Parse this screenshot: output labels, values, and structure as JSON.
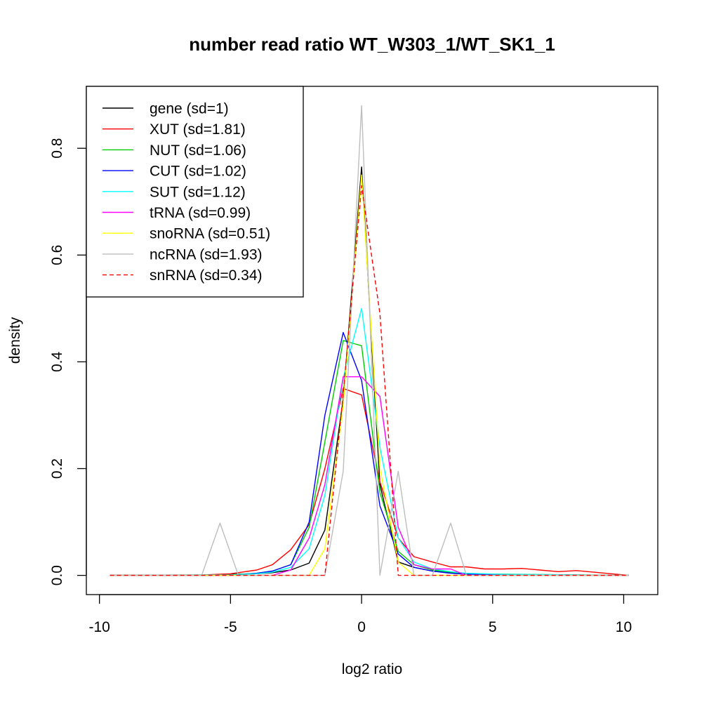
{
  "chart_data": {
    "type": "line",
    "title": "number read ratio WT_W303_1/WT_SK1_1",
    "xlabel": "log2 ratio",
    "ylabel": "density",
    "xlim": [
      -10.5,
      11.3
    ],
    "ylim": [
      -0.036,
      0.916
    ],
    "x_ticks": [
      -10,
      -5,
      0,
      5,
      10
    ],
    "x_tick_labels": [
      "-10",
      "-5",
      "0",
      "5",
      "10"
    ],
    "y_ticks": [
      0.0,
      0.2,
      0.4,
      0.6,
      0.8
    ],
    "y_tick_labels": [
      "0.0",
      "0.2",
      "0.4",
      "0.6",
      "0.8"
    ],
    "grid": false,
    "legend_position": "top-left",
    "series": [
      {
        "name": "gene (sd=1)",
        "color": "#000000",
        "dash": "solid",
        "x": [
          -9.6,
          -6.0,
          -5.0,
          -4.0,
          -3.4,
          -2.7,
          -2.0,
          -1.4,
          -0.7,
          0.0,
          0.7,
          1.4,
          2.0,
          2.7,
          3.4,
          4.0,
          5.0,
          7.0,
          8.4,
          10.2
        ],
        "y": [
          0.0,
          0.0,
          0.002,
          0.003,
          0.005,
          0.01,
          0.023,
          0.085,
          0.33,
          0.765,
          0.17,
          0.025,
          0.015,
          0.008,
          0.005,
          0.003,
          0.002,
          0.001,
          0.0,
          0.0
        ]
      },
      {
        "name": "XUT (sd=1.81)",
        "color": "#ff0000",
        "dash": "solid",
        "x": [
          -9.6,
          -6.0,
          -5.0,
          -4.0,
          -3.4,
          -2.7,
          -2.0,
          -1.4,
          -0.7,
          0.0,
          0.7,
          1.4,
          2.0,
          2.7,
          3.4,
          4.0,
          4.7,
          5.4,
          6.1,
          6.8,
          7.5,
          8.2,
          10.2
        ],
        "y": [
          0.0,
          0.001,
          0.003,
          0.01,
          0.02,
          0.048,
          0.095,
          0.2,
          0.35,
          0.338,
          0.175,
          0.07,
          0.035,
          0.025,
          0.016,
          0.016,
          0.012,
          0.012,
          0.013,
          0.01,
          0.007,
          0.009,
          0.0
        ]
      },
      {
        "name": "NUT (sd=1.06)",
        "color": "#00cd00",
        "dash": "solid",
        "x": [
          -9.6,
          -5.0,
          -4.0,
          -3.4,
          -2.7,
          -2.0,
          -1.4,
          -0.7,
          0.0,
          0.7,
          1.4,
          2.0,
          2.7,
          3.4,
          4.0,
          10.2
        ],
        "y": [
          0.0,
          0.001,
          0.004,
          0.008,
          0.02,
          0.09,
          0.25,
          0.44,
          0.43,
          0.155,
          0.045,
          0.02,
          0.01,
          0.006,
          0.003,
          0.0
        ]
      },
      {
        "name": "CUT (sd=1.02)",
        "color": "#0000ff",
        "dash": "solid",
        "x": [
          -9.6,
          -5.0,
          -4.0,
          -3.4,
          -2.7,
          -2.0,
          -1.4,
          -0.7,
          0.0,
          0.7,
          1.4,
          2.0,
          2.7,
          3.4,
          4.0,
          10.2
        ],
        "y": [
          0.0,
          0.0,
          0.004,
          0.008,
          0.02,
          0.1,
          0.3,
          0.455,
          0.365,
          0.13,
          0.04,
          0.015,
          0.008,
          0.004,
          0.002,
          0.0
        ]
      },
      {
        "name": "SUT (sd=1.12)",
        "color": "#00ffff",
        "dash": "solid",
        "x": [
          -9.6,
          -5.0,
          -4.0,
          -3.4,
          -2.7,
          -2.0,
          -1.4,
          -0.7,
          0.0,
          0.7,
          1.4,
          2.0,
          2.7,
          3.4,
          4.0,
          5.4,
          10.2
        ],
        "y": [
          0.0,
          0.001,
          0.003,
          0.006,
          0.015,
          0.05,
          0.15,
          0.37,
          0.5,
          0.24,
          0.07,
          0.025,
          0.012,
          0.007,
          0.004,
          0.002,
          0.0
        ]
      },
      {
        "name": "tRNA (sd=0.99)",
        "color": "#ff00ff",
        "dash": "solid",
        "x": [
          -9.6,
          -3.4,
          -2.7,
          -2.0,
          -1.4,
          -0.7,
          0.0,
          0.7,
          1.4,
          2.0,
          2.7,
          3.4,
          4.0,
          10.2
        ],
        "y": [
          0.0,
          0.0,
          0.01,
          0.07,
          0.17,
          0.372,
          0.372,
          0.335,
          0.09,
          0.02,
          0.012,
          0.012,
          0.0,
          0.0
        ]
      },
      {
        "name": "snoRNA (sd=0.51)",
        "color": "#ffff00",
        "dash": "solid",
        "x": [
          -9.6,
          -2.0,
          -1.4,
          -0.7,
          0.0,
          0.7,
          1.4,
          2.0,
          10.2
        ],
        "y": [
          0.0,
          0.0,
          0.05,
          0.32,
          0.75,
          0.2,
          0.025,
          0.0,
          0.0
        ]
      },
      {
        "name": "ncRNA (sd=1.93)",
        "color": "#bebebe",
        "dash": "solid",
        "x": [
          -9.6,
          -6.1,
          -5.4,
          -4.7,
          -2.0,
          -1.4,
          -0.7,
          0.0,
          0.7,
          1.4,
          2.0,
          2.7,
          3.4,
          4.0,
          10.2
        ],
        "y": [
          0.0,
          0.0,
          0.098,
          0.0,
          0.0,
          0.0,
          0.195,
          0.88,
          0.0,
          0.195,
          0.0,
          0.0,
          0.098,
          0.0,
          0.0
        ]
      },
      {
        "name": "snRNA (sd=0.34)",
        "color": "#ff0000",
        "dash": "dashed",
        "x": [
          -9.6,
          -1.4,
          -0.7,
          0.0,
          0.7,
          1.4,
          10.2
        ],
        "y": [
          0.0,
          0.0,
          0.34,
          0.73,
          0.49,
          0.0,
          0.0
        ]
      }
    ]
  }
}
